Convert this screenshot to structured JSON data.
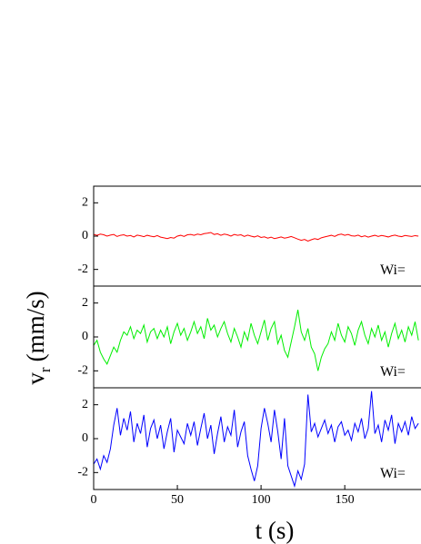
{
  "chart_data": [
    {
      "type": "line",
      "annotation": "Wi=",
      "xlim": [
        0,
        195
      ],
      "ylim": [
        -3,
        3
      ],
      "yticks": [
        -2,
        0,
        2
      ],
      "x": [
        0,
        2,
        4,
        6,
        8,
        10,
        12,
        14,
        16,
        18,
        20,
        22,
        24,
        26,
        28,
        30,
        32,
        34,
        36,
        38,
        40,
        42,
        44,
        46,
        48,
        50,
        52,
        54,
        56,
        58,
        60,
        62,
        64,
        66,
        68,
        70,
        72,
        74,
        76,
        78,
        80,
        82,
        84,
        86,
        88,
        90,
        92,
        94,
        96,
        98,
        100,
        102,
        104,
        106,
        108,
        110,
        112,
        114,
        116,
        118,
        120,
        122,
        124,
        126,
        128,
        130,
        132,
        134,
        136,
        138,
        140,
        142,
        144,
        146,
        148,
        150,
        152,
        154,
        156,
        158,
        160,
        162,
        164,
        166,
        168,
        170,
        172,
        174,
        176,
        178,
        180,
        182,
        184,
        186,
        188,
        190,
        192,
        194
      ],
      "series": [
        {
          "color": "#ff0000",
          "values": [
            0.1,
            0.05,
            0.12,
            0.08,
            0.0,
            0.06,
            0.1,
            -0.02,
            0.05,
            0.08,
            0.0,
            0.04,
            -0.05,
            0.06,
            0.02,
            -0.03,
            0.05,
            0.0,
            -0.04,
            0.03,
            -0.06,
            -0.1,
            -0.15,
            -0.08,
            -0.12,
            0.0,
            0.05,
            -0.02,
            0.08,
            0.1,
            0.05,
            0.12,
            0.08,
            0.15,
            0.18,
            0.22,
            0.1,
            0.14,
            0.05,
            0.12,
            0.08,
            0.0,
            0.1,
            0.05,
            0.08,
            -0.02,
            0.06,
            0.0,
            -0.05,
            0.02,
            -0.08,
            -0.04,
            -0.12,
            -0.06,
            -0.15,
            -0.1,
            -0.05,
            -0.12,
            -0.08,
            -0.02,
            -0.1,
            -0.18,
            -0.25,
            -0.2,
            -0.3,
            -0.22,
            -0.15,
            -0.2,
            -0.1,
            -0.05,
            0.0,
            0.05,
            -0.02,
            0.08,
            0.12,
            0.05,
            0.1,
            0.02,
            0.0,
            0.06,
            -0.04,
            0.02,
            -0.06,
            0.0,
            0.05,
            -0.02,
            0.04,
            0.0,
            -0.05,
            0.02,
            0.06,
            0.0,
            -0.03,
            0.04,
            0.01,
            -0.02,
            0.03,
            0.0
          ]
        }
      ]
    },
    {
      "type": "line",
      "annotation": "Wi=",
      "xlim": [
        0,
        195
      ],
      "ylim": [
        -3,
        3
      ],
      "yticks": [
        -2,
        0,
        2
      ],
      "ylabel": "v",
      "ylabel_sub": "r",
      "ylabel_unit": "(mm/s)",
      "x": [
        0,
        2,
        4,
        6,
        8,
        10,
        12,
        14,
        16,
        18,
        20,
        22,
        24,
        26,
        28,
        30,
        32,
        34,
        36,
        38,
        40,
        42,
        44,
        46,
        48,
        50,
        52,
        54,
        56,
        58,
        60,
        62,
        64,
        66,
        68,
        70,
        72,
        74,
        76,
        78,
        80,
        82,
        84,
        86,
        88,
        90,
        92,
        94,
        96,
        98,
        100,
        102,
        104,
        106,
        108,
        110,
        112,
        114,
        116,
        118,
        120,
        122,
        124,
        126,
        128,
        130,
        132,
        134,
        136,
        138,
        140,
        142,
        144,
        146,
        148,
        150,
        152,
        154,
        156,
        158,
        160,
        162,
        164,
        166,
        168,
        170,
        172,
        174,
        176,
        178,
        180,
        182,
        184,
        186,
        188,
        190,
        192,
        194
      ],
      "series": [
        {
          "color": "#00ee00",
          "values": [
            -0.5,
            -0.2,
            -0.9,
            -1.3,
            -1.6,
            -1.1,
            -0.6,
            -0.9,
            -0.2,
            0.3,
            0.1,
            0.6,
            -0.1,
            0.4,
            0.2,
            0.7,
            -0.3,
            0.3,
            0.5,
            -0.1,
            0.4,
            0.0,
            0.6,
            -0.4,
            0.3,
            0.8,
            0.1,
            0.5,
            -0.2,
            0.3,
            0.9,
            0.2,
            0.6,
            -0.1,
            1.1,
            0.4,
            0.7,
            0.0,
            0.5,
            0.9,
            0.2,
            -0.3,
            0.5,
            0.0,
            -0.6,
            0.3,
            -0.2,
            0.8,
            0.1,
            -0.4,
            0.3,
            1.0,
            -0.2,
            0.5,
            0.9,
            -0.4,
            0.1,
            -0.8,
            -1.2,
            -0.3,
            0.6,
            1.6,
            0.3,
            -0.2,
            0.5,
            -0.6,
            -1.0,
            -2.0,
            -1.2,
            -0.7,
            -0.4,
            0.3,
            -0.2,
            0.8,
            0.1,
            -0.3,
            0.6,
            0.2,
            -0.5,
            0.4,
            0.9,
            0.1,
            -0.4,
            0.5,
            0.0,
            0.7,
            -0.2,
            0.3,
            -0.6,
            0.2,
            0.8,
            -0.1,
            0.4,
            -0.3,
            0.6,
            0.1,
            0.9,
            -0.2
          ]
        }
      ]
    },
    {
      "type": "line",
      "annotation": "Wi=",
      "xlim": [
        0,
        195
      ],
      "ylim": [
        -3,
        3
      ],
      "yticks": [
        -2,
        0,
        2
      ],
      "xticks": [
        0,
        50,
        100,
        150
      ],
      "xlabel": "t (s)",
      "x": [
        0,
        2,
        4,
        6,
        8,
        10,
        12,
        14,
        16,
        18,
        20,
        22,
        24,
        26,
        28,
        30,
        32,
        34,
        36,
        38,
        40,
        42,
        44,
        46,
        48,
        50,
        52,
        54,
        56,
        58,
        60,
        62,
        64,
        66,
        68,
        70,
        72,
        74,
        76,
        78,
        80,
        82,
        84,
        86,
        88,
        90,
        92,
        94,
        96,
        98,
        100,
        102,
        104,
        106,
        108,
        110,
        112,
        114,
        116,
        118,
        120,
        122,
        124,
        126,
        128,
        130,
        132,
        134,
        136,
        138,
        140,
        142,
        144,
        146,
        148,
        150,
        152,
        154,
        156,
        158,
        160,
        162,
        164,
        166,
        168,
        170,
        172,
        174,
        176,
        178,
        180,
        182,
        184,
        186,
        188,
        190,
        192,
        194
      ],
      "series": [
        {
          "color": "#0000ff",
          "values": [
            -1.5,
            -1.2,
            -1.8,
            -1.0,
            -1.4,
            -0.6,
            0.8,
            1.8,
            0.2,
            1.2,
            0.5,
            1.6,
            -0.2,
            0.9,
            0.3,
            1.4,
            -0.5,
            0.6,
            1.1,
            0.0,
            0.8,
            -0.6,
            0.4,
            1.2,
            -0.8,
            0.5,
            0.1,
            -0.3,
            0.9,
            0.2,
            1.0,
            -0.4,
            0.6,
            1.5,
            0.0,
            0.8,
            -0.9,
            0.3,
            1.3,
            -0.2,
            0.7,
            0.2,
            1.7,
            -0.5,
            0.4,
            1.0,
            -1.0,
            -1.8,
            -2.5,
            -1.6,
            0.6,
            1.8,
            0.9,
            -0.2,
            1.7,
            0.4,
            -1.2,
            1.2,
            -1.6,
            -2.2,
            -2.8,
            -1.9,
            -2.4,
            -1.5,
            2.6,
            0.4,
            0.9,
            0.1,
            0.6,
            1.1,
            0.3,
            0.8,
            -0.2,
            0.7,
            1.0,
            0.2,
            0.5,
            -0.1,
            0.9,
            0.4,
            1.2,
            0.0,
            0.6,
            2.8,
            0.3,
            0.8,
            -0.2,
            1.1,
            0.5,
            1.4,
            -0.3,
            0.9,
            0.4,
            1.0,
            0.2,
            1.3,
            0.6,
            0.9
          ]
        }
      ]
    }
  ]
}
